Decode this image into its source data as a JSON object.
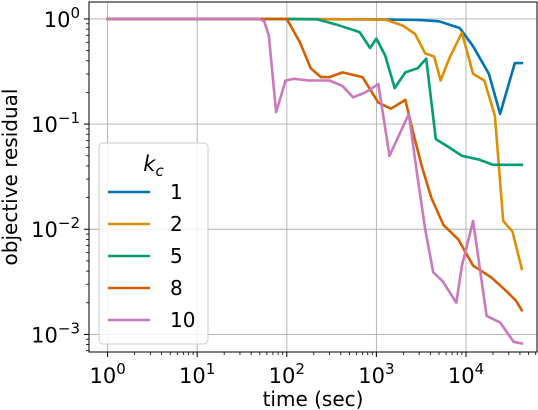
{
  "chart_data": {
    "type": "line",
    "xlabel": "time (sec)",
    "ylabel": "objective residual",
    "xscale": "log",
    "yscale": "log",
    "xlim": [
      0.62,
      62000
    ],
    "ylim": [
      0.00068,
      1.45
    ],
    "grid": true,
    "legend": {
      "title_base": "k",
      "title_sub": "c",
      "placement": "lower-left"
    },
    "x_ticks": [
      {
        "base": "10",
        "exp": "0",
        "value": 1
      },
      {
        "base": "10",
        "exp": "1",
        "value": 10
      },
      {
        "base": "10",
        "exp": "2",
        "value": 100
      },
      {
        "base": "10",
        "exp": "3",
        "value": 1000
      },
      {
        "base": "10",
        "exp": "4",
        "value": 10000
      }
    ],
    "y_ticks": [
      {
        "base": "10",
        "exp": "0",
        "value": 1
      },
      {
        "base": "10",
        "exp": "−1",
        "value": 0.1
      },
      {
        "base": "10",
        "exp": "−2",
        "value": 0.01
      },
      {
        "base": "10",
        "exp": "−3",
        "value": 0.001
      }
    ],
    "series": [
      {
        "name": "1",
        "color": "#0173b2",
        "x": [
          1,
          100,
          1000,
          3000,
          5000,
          8500,
          12000,
          18000,
          24000,
          35000,
          42000
        ],
        "y": [
          1,
          1,
          0.99,
          0.98,
          0.95,
          0.82,
          0.55,
          0.3,
          0.125,
          0.38,
          0.38
        ]
      },
      {
        "name": "2",
        "color": "#de8f05",
        "x": [
          1,
          100,
          800,
          1300,
          2000,
          2700,
          3500,
          4400,
          5200,
          6500,
          9000,
          12000,
          16000,
          21000,
          26000,
          33000,
          42000
        ],
        "y": [
          1,
          1,
          0.99,
          0.98,
          0.86,
          0.72,
          0.47,
          0.44,
          0.26,
          0.42,
          0.74,
          0.3,
          0.26,
          0.12,
          0.012,
          0.0095,
          0.0042
        ]
      },
      {
        "name": "5",
        "color": "#029e73",
        "x": [
          1,
          100,
          220,
          380,
          650,
          850,
          1000,
          1250,
          1600,
          2100,
          2900,
          3600,
          4600,
          6500,
          9000,
          14000,
          20000,
          30000,
          42000
        ],
        "y": [
          1,
          1,
          0.99,
          0.87,
          0.75,
          0.53,
          0.65,
          0.45,
          0.22,
          0.31,
          0.34,
          0.42,
          0.072,
          0.06,
          0.05,
          0.046,
          0.041,
          0.041,
          0.041
        ]
      },
      {
        "name": "8",
        "color": "#d55e00",
        "x": [
          1,
          100,
          140,
          185,
          240,
          300,
          420,
          700,
          1050,
          1450,
          2100,
          2600,
          3200,
          4100,
          5600,
          8200,
          12000,
          19000,
          28000,
          36000,
          42000
        ],
        "y": [
          1,
          1,
          0.6,
          0.34,
          0.28,
          0.28,
          0.31,
          0.28,
          0.16,
          0.14,
          0.17,
          0.08,
          0.04,
          0.02,
          0.011,
          0.008,
          0.0045,
          0.0035,
          0.0026,
          0.0021,
          0.0017
        ]
      },
      {
        "name": "10",
        "color": "#cc78bc",
        "x": [
          1,
          50,
          56,
          63,
          76,
          97,
          120,
          175,
          230,
          300,
          420,
          550,
          750,
          1050,
          1400,
          2300,
          2900,
          3500,
          4300,
          5500,
          7800,
          9000,
          12000,
          17000,
          24000,
          34000,
          42000
        ],
        "y": [
          1,
          1,
          0.95,
          0.7,
          0.13,
          0.26,
          0.27,
          0.26,
          0.26,
          0.26,
          0.23,
          0.18,
          0.2,
          0.24,
          0.05,
          0.125,
          0.03,
          0.01,
          0.0039,
          0.0032,
          0.002,
          0.0045,
          0.012,
          0.0015,
          0.0013,
          0.00085,
          0.00082
        ]
      }
    ]
  }
}
